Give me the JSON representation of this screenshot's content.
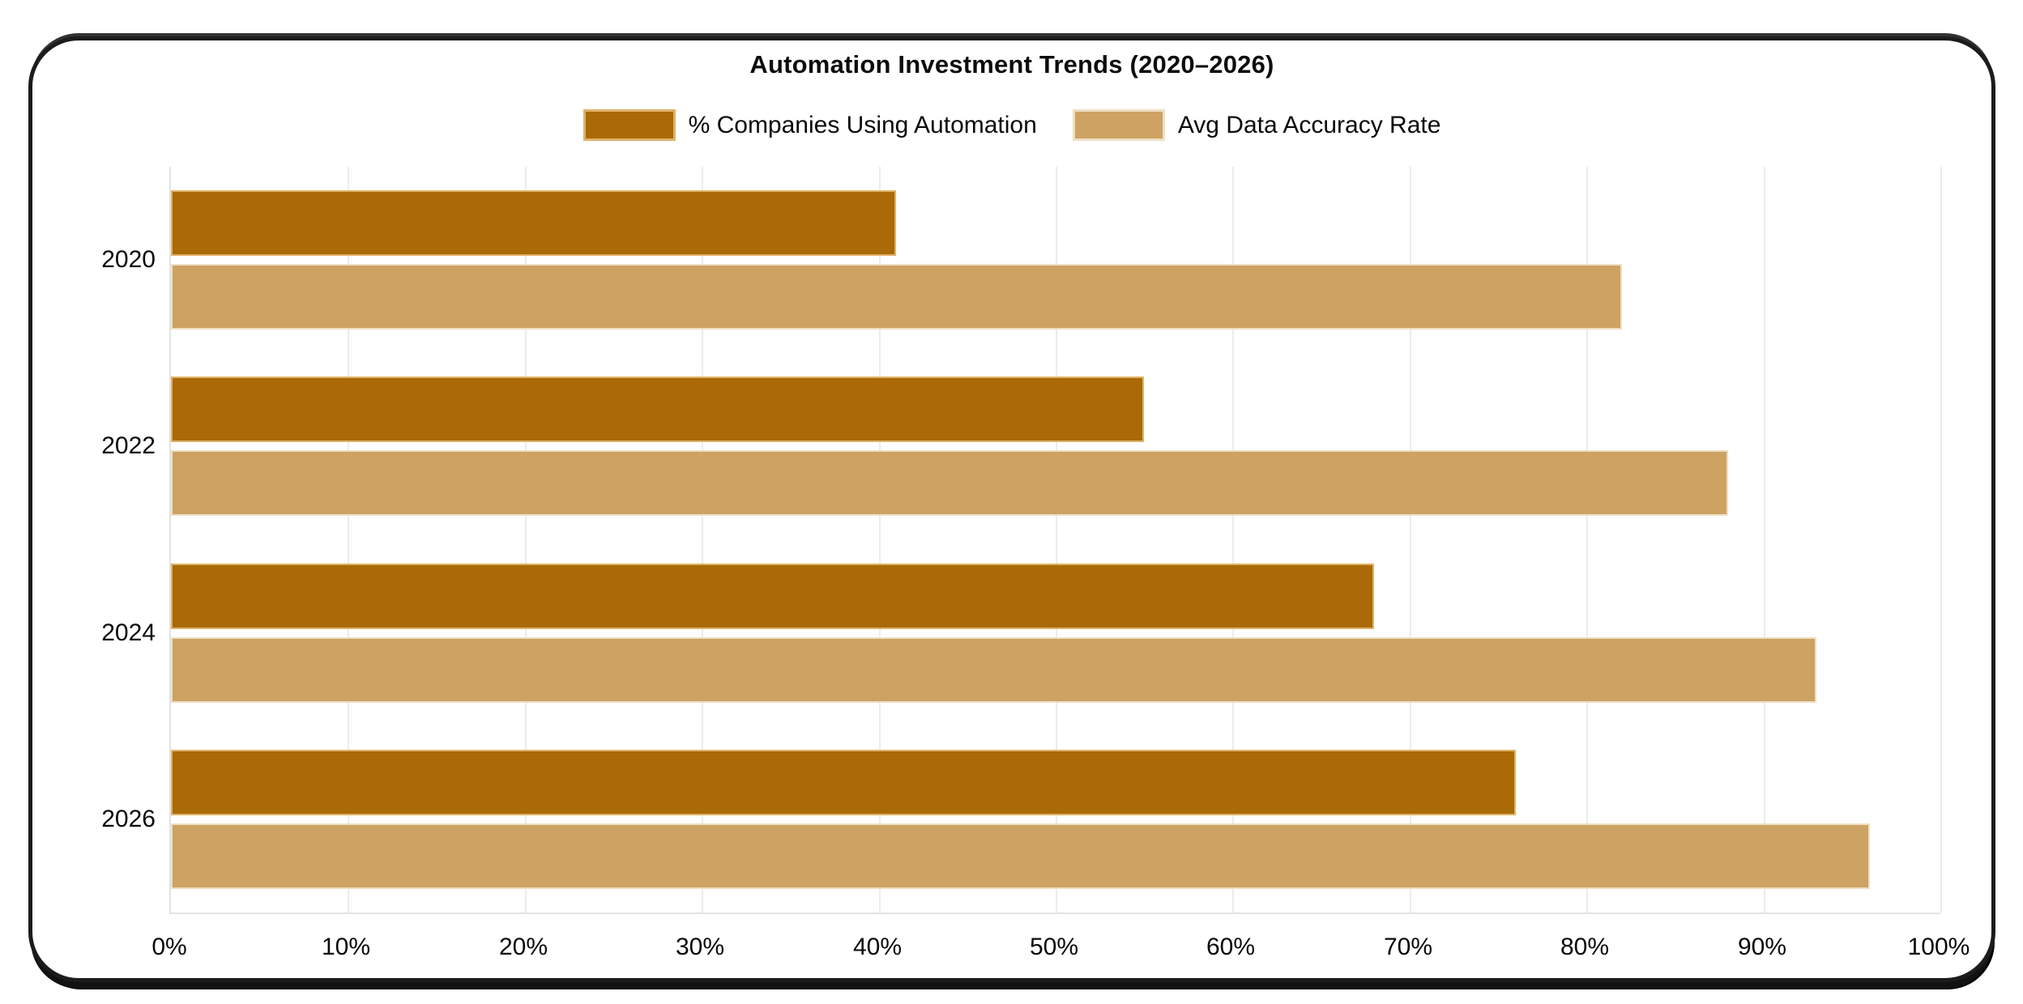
{
  "title": "Automation Investment Trends (2020–2026)",
  "chart_data": {
    "type": "bar",
    "orientation": "horizontal",
    "title": "Automation Investment Trends (2020–2026)",
    "categories": [
      "2020",
      "2022",
      "2024",
      "2026"
    ],
    "series": [
      {
        "name": "% Companies Using Automation",
        "values": [
          41,
          55,
          68,
          76
        ],
        "color": "#a96a07",
        "border_color": "#dfb269"
      },
      {
        "name": "Avg Data Accuracy Rate",
        "values": [
          82,
          88,
          93,
          96
        ],
        "color": "#cda263",
        "border_color": "#eedfc2"
      }
    ],
    "xlabel": "",
    "ylabel": "",
    "xlim": [
      0,
      100
    ],
    "x_ticks": [
      "0%",
      "10%",
      "20%",
      "30%",
      "40%",
      "50%",
      "60%",
      "70%",
      "80%",
      "90%",
      "100%"
    ],
    "grid": true,
    "gridline_color": "#ececec",
    "axis_line_color": "#e3e3e3",
    "legend_position": "top",
    "frame_color": "#1c1c1c",
    "background_color": "#ffffff"
  }
}
